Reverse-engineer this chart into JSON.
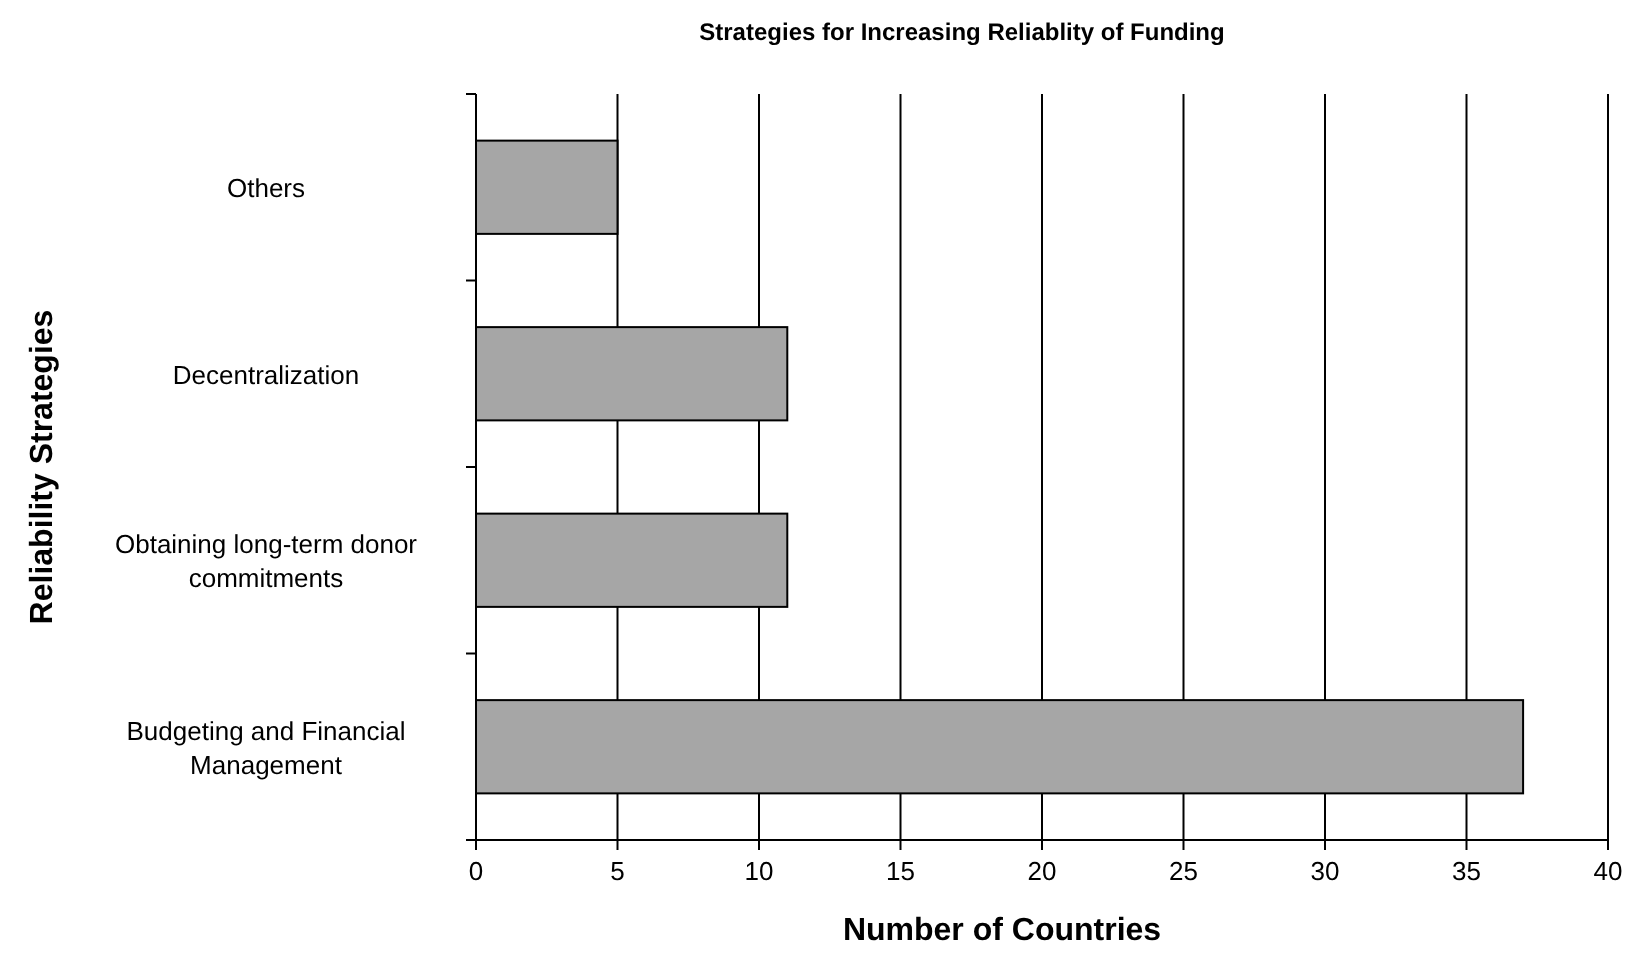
{
  "chart_data": {
    "type": "bar",
    "orientation": "horizontal",
    "title": "Strategies for Increasing Reliablity of Funding",
    "xlabel": "Number of Countries",
    "ylabel": "Reliability Strategies",
    "categories": [
      "Others",
      "Decentralization",
      "Obtaining long-term donor commitments",
      "Budgeting and Financial Management"
    ],
    "values": [
      5,
      11,
      11,
      37
    ],
    "color": "#a6a6a6",
    "xlim": [
      0,
      40
    ],
    "xticks": [
      0,
      5,
      10,
      15,
      20,
      25,
      30,
      35,
      40
    ],
    "grid": "x"
  }
}
